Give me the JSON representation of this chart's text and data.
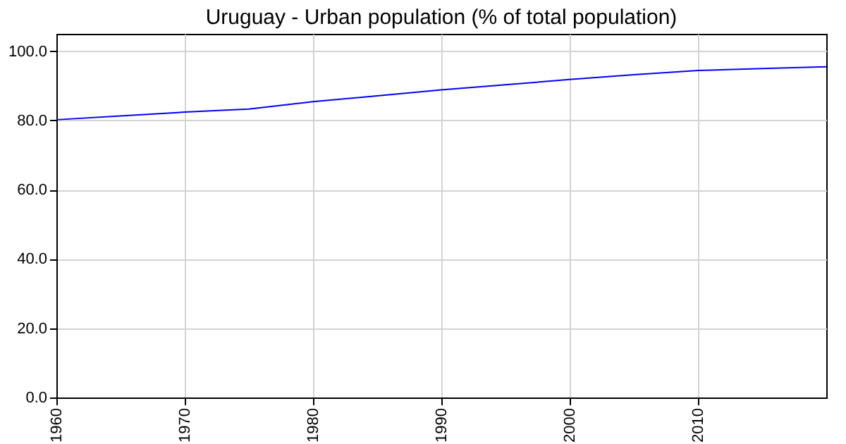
{
  "chart_data": {
    "type": "line",
    "title": "Uruguay - Urban population (% of total population)",
    "x": [
      1960,
      1965,
      1970,
      1975,
      1980,
      1985,
      1990,
      1995,
      2000,
      2005,
      2010,
      2015,
      2020
    ],
    "series": [
      {
        "color": "#0000ff",
        "values": [
          80.2,
          81.3,
          82.4,
          83.3,
          85.4,
          87.1,
          88.8,
          90.3,
          91.8,
          93.2,
          94.4,
          95.0,
          95.5
        ]
      }
    ],
    "xlim": [
      1960,
      2020
    ],
    "xticks": [
      1960,
      1970,
      1980,
      1990,
      2000,
      2010
    ],
    "ylim": [
      0,
      105
    ],
    "yticks": [
      {
        "value": 0,
        "label": "0.0"
      },
      {
        "value": 20,
        "label": "20.0"
      },
      {
        "value": 40,
        "label": "40.0"
      },
      {
        "value": 60,
        "label": "60.0"
      },
      {
        "value": 80,
        "label": "80.0"
      },
      {
        "value": 100,
        "label": "100.0"
      }
    ],
    "grid": true,
    "legend": false,
    "marker": "none",
    "line_style": "solid"
  }
}
